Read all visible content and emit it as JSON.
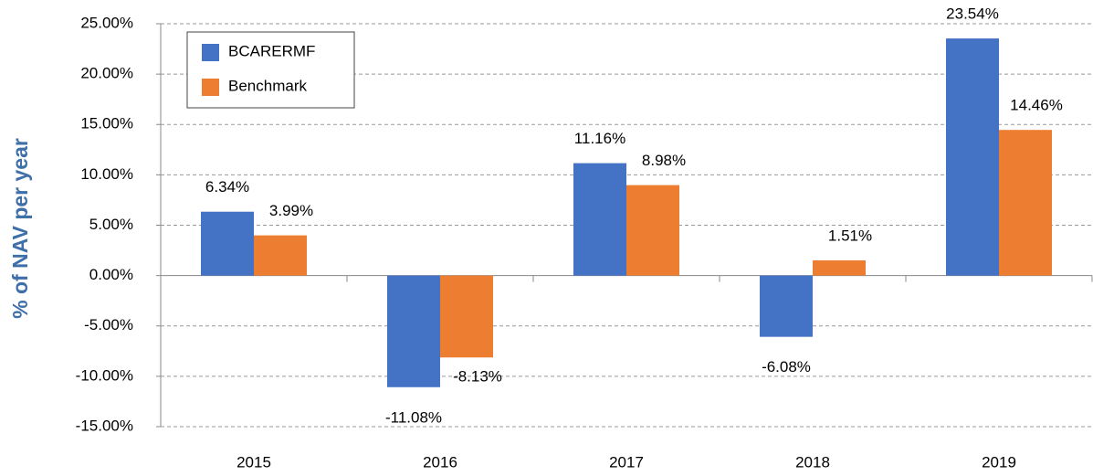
{
  "chart_data": {
    "type": "bar",
    "y_axis_label": "% of NAV per year",
    "categories": [
      "2015",
      "2016",
      "2017",
      "2018",
      "2019"
    ],
    "series": [
      {
        "name": "BCARERMF",
        "color": "#4472c4",
        "values": [
          6.34,
          -11.08,
          11.16,
          -6.08,
          23.54
        ],
        "value_labels": [
          "6.34%",
          "-11.08%",
          "11.16%",
          "-6.08%",
          "23.54%"
        ]
      },
      {
        "name": "Benchmark",
        "color": "#ed7d31",
        "values": [
          3.99,
          -8.13,
          8.98,
          1.51,
          14.46
        ],
        "value_labels": [
          "3.99%",
          "-8.13%",
          "8.98%",
          "1.51%",
          "14.46%"
        ]
      }
    ],
    "ylim": [
      -15,
      25
    ],
    "yticks": [
      {
        "value": 25,
        "label": "25.00%"
      },
      {
        "value": 20,
        "label": "20.00%"
      },
      {
        "value": 15,
        "label": "15.00%"
      },
      {
        "value": 10,
        "label": "10.00%"
      },
      {
        "value": 5,
        "label": "5.00%"
      },
      {
        "value": 0,
        "label": "0.00%"
      },
      {
        "value": -5,
        "label": "-5.00%"
      },
      {
        "value": -10,
        "label": "-10.00%"
      },
      {
        "value": -15,
        "label": "-15.00%"
      }
    ],
    "grid": true,
    "legend": "upper left"
  }
}
